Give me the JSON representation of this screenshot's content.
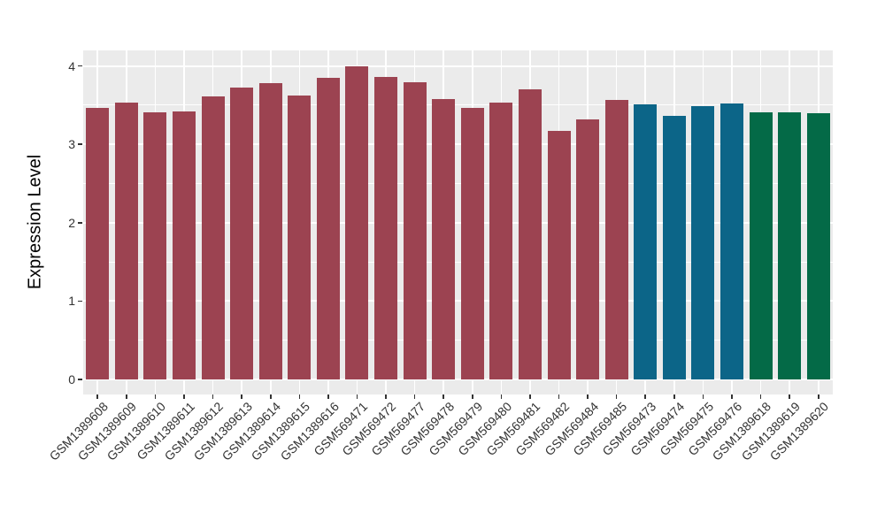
{
  "chart_data": {
    "type": "bar",
    "title": "",
    "ylabel": "Expression Level",
    "xlabel": "",
    "categories": [
      "GSM1389608",
      "GSM1389609",
      "GSM1389610",
      "GSM1389611",
      "GSM1389612",
      "GSM1389613",
      "GSM1389614",
      "GSM1389615",
      "GSM1389616",
      "GSM569471",
      "GSM569472",
      "GSM569477",
      "GSM569478",
      "GSM569479",
      "GSM569480",
      "GSM569481",
      "GSM569482",
      "GSM569484",
      "GSM569485",
      "GSM569473",
      "GSM569474",
      "GSM569475",
      "GSM569476",
      "GSM1389618",
      "GSM1389619",
      "GSM1389620"
    ],
    "values": [
      3.47,
      3.53,
      3.41,
      3.42,
      3.61,
      3.72,
      3.78,
      3.62,
      3.85,
      4.0,
      3.86,
      3.79,
      3.58,
      3.46,
      3.53,
      3.7,
      3.17,
      3.32,
      3.57,
      3.51,
      3.36,
      3.49,
      3.52,
      3.41,
      3.41,
      3.4
    ],
    "bar_colors": [
      "#9C4351",
      "#9C4351",
      "#9C4351",
      "#9C4351",
      "#9C4351",
      "#9C4351",
      "#9C4351",
      "#9C4351",
      "#9C4351",
      "#9C4351",
      "#9C4351",
      "#9C4351",
      "#9C4351",
      "#9C4351",
      "#9C4351",
      "#9C4351",
      "#9C4351",
      "#9C4351",
      "#9C4351",
      "#0C6588",
      "#0C6588",
      "#0C6588",
      "#0C6588",
      "#046A47",
      "#046A47",
      "#046A47"
    ],
    "palette": {
      "maroon": "#9C4351",
      "teal": "#0C6588",
      "green": "#046A47"
    },
    "ylim": [
      0,
      4.2
    ],
    "yticks": [
      0,
      1,
      2,
      3,
      4
    ],
    "yticks_minor": [
      0.5,
      1.5,
      2.5,
      3.5
    ],
    "grid": "on",
    "legend": "none",
    "panel_background": "#EBEBEB",
    "grid_color": "#FFFFFF",
    "tick_color": "#333333",
    "axis_text_color": "#333333",
    "axis_title_color": "#000000"
  }
}
